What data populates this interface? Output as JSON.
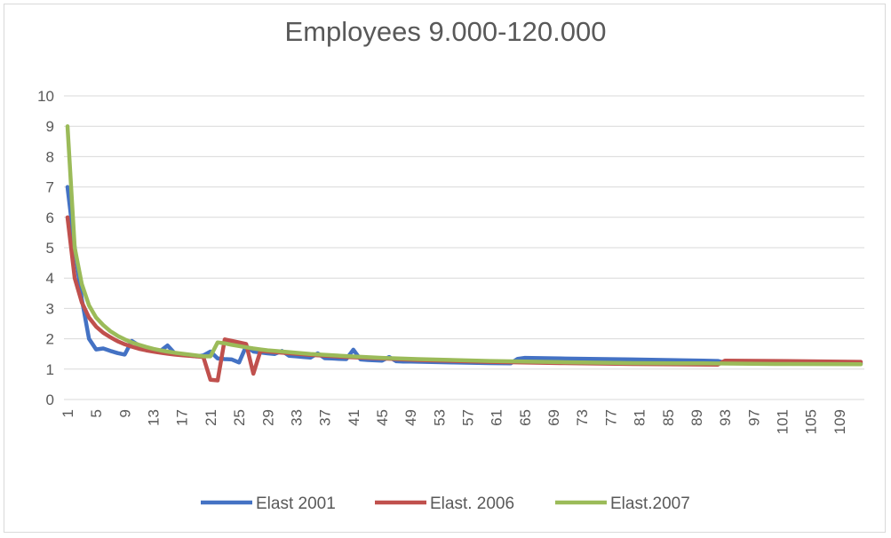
{
  "chart_data": {
    "type": "line",
    "title": "Employees 9.000-120.000",
    "xlabel": "",
    "ylabel": "",
    "x_range": [
      1,
      112
    ],
    "x_tick_labels": [
      "1",
      "5",
      "9",
      "13",
      "17",
      "21",
      "25",
      "29",
      "33",
      "37",
      "41",
      "45",
      "49",
      "53",
      "57",
      "61",
      "65",
      "69",
      "73",
      "77",
      "81",
      "85",
      "89",
      "93",
      "97",
      "101",
      "105",
      "109"
    ],
    "ylim": [
      0,
      10
    ],
    "y_tick_labels": [
      "0",
      "1",
      "2",
      "3",
      "4",
      "5",
      "6",
      "7",
      "8",
      "9",
      "10"
    ],
    "grid": "horizontal",
    "legend_position": "bottom",
    "series": [
      {
        "name": "Elast 2001",
        "color": "#4472c4",
        "points": [
          [
            1,
            7
          ],
          [
            2,
            5
          ],
          [
            3,
            3.3
          ],
          [
            4,
            2
          ],
          [
            5,
            1.65
          ],
          [
            6,
            1.68
          ],
          [
            7,
            1.6
          ],
          [
            8,
            1.53
          ],
          [
            9,
            1.48
          ],
          [
            10,
            1.93
          ],
          [
            11,
            1.78
          ],
          [
            12,
            1.72
          ],
          [
            13,
            1.65
          ],
          [
            14,
            1.6
          ],
          [
            15,
            1.78
          ],
          [
            16,
            1.52
          ],
          [
            17,
            1.48
          ],
          [
            18,
            1.45
          ],
          [
            19,
            1.42
          ],
          [
            20,
            1.45
          ],
          [
            21,
            1.58
          ],
          [
            22,
            1.35
          ],
          [
            23,
            1.33
          ],
          [
            24,
            1.32
          ],
          [
            25,
            1.22
          ],
          [
            26,
            1.76
          ],
          [
            27,
            1.58
          ],
          [
            28,
            1.55
          ],
          [
            29,
            1.52
          ],
          [
            30,
            1.5
          ],
          [
            31,
            1.6
          ],
          [
            32,
            1.44
          ],
          [
            33,
            1.42
          ],
          [
            34,
            1.4
          ],
          [
            35,
            1.38
          ],
          [
            36,
            1.52
          ],
          [
            37,
            1.36
          ],
          [
            38,
            1.35
          ],
          [
            39,
            1.34
          ],
          [
            40,
            1.33
          ],
          [
            41,
            1.64
          ],
          [
            42,
            1.32
          ],
          [
            43,
            1.3
          ],
          [
            44,
            1.29
          ],
          [
            45,
            1.28
          ],
          [
            46,
            1.4
          ],
          [
            47,
            1.26
          ],
          [
            48,
            1.25
          ],
          [
            49,
            1.25
          ],
          [
            55,
            1.22
          ],
          [
            60,
            1.2
          ],
          [
            63,
            1.19
          ],
          [
            64,
            1.34
          ],
          [
            65,
            1.37
          ],
          [
            70,
            1.35
          ],
          [
            80,
            1.32
          ],
          [
            90,
            1.28
          ],
          [
            92,
            1.27
          ],
          [
            93,
            1.21
          ],
          [
            100,
            1.2
          ],
          [
            112,
            1.19
          ]
        ]
      },
      {
        "name": "Elast. 2006",
        "color": "#c0504d",
        "points": [
          [
            1,
            6
          ],
          [
            2,
            4
          ],
          [
            3,
            3.2
          ],
          [
            4,
            2.7
          ],
          [
            5,
            2.4
          ],
          [
            6,
            2.2
          ],
          [
            7,
            2.05
          ],
          [
            8,
            1.92
          ],
          [
            9,
            1.82
          ],
          [
            10,
            1.74
          ],
          [
            11,
            1.67
          ],
          [
            12,
            1.62
          ],
          [
            13,
            1.58
          ],
          [
            14,
            1.54
          ],
          [
            15,
            1.51
          ],
          [
            16,
            1.48
          ],
          [
            17,
            1.46
          ],
          [
            18,
            1.44
          ],
          [
            19,
            1.42
          ],
          [
            20,
            1.4
          ],
          [
            21,
            0.65
          ],
          [
            22,
            0.63
          ],
          [
            23,
            1.98
          ],
          [
            24,
            1.93
          ],
          [
            25,
            1.88
          ],
          [
            26,
            1.83
          ],
          [
            27,
            0.85
          ],
          [
            28,
            1.6
          ],
          [
            29,
            1.58
          ],
          [
            30,
            1.56
          ],
          [
            35,
            1.47
          ],
          [
            40,
            1.4
          ],
          [
            45,
            1.35
          ],
          [
            50,
            1.3
          ],
          [
            60,
            1.24
          ],
          [
            70,
            1.2
          ],
          [
            80,
            1.17
          ],
          [
            92,
            1.15
          ],
          [
            93,
            1.28
          ],
          [
            100,
            1.27
          ],
          [
            112,
            1.24
          ]
        ]
      },
      {
        "name": "Elast.2007",
        "color": "#9bbb59",
        "points": [
          [
            1,
            9
          ],
          [
            2,
            5
          ],
          [
            3,
            3.8
          ],
          [
            4,
            3.1
          ],
          [
            5,
            2.7
          ],
          [
            6,
            2.45
          ],
          [
            7,
            2.25
          ],
          [
            8,
            2.1
          ],
          [
            9,
            1.98
          ],
          [
            10,
            1.88
          ],
          [
            11,
            1.8
          ],
          [
            12,
            1.73
          ],
          [
            13,
            1.67
          ],
          [
            14,
            1.62
          ],
          [
            15,
            1.58
          ],
          [
            16,
            1.54
          ],
          [
            17,
            1.51
          ],
          [
            18,
            1.48
          ],
          [
            19,
            1.45
          ],
          [
            20,
            1.42
          ],
          [
            21,
            1.42
          ],
          [
            22,
            1.88
          ],
          [
            23,
            1.85
          ],
          [
            24,
            1.8
          ],
          [
            25,
            1.76
          ],
          [
            26,
            1.72
          ],
          [
            27,
            1.68
          ],
          [
            28,
            1.65
          ],
          [
            29,
            1.62
          ],
          [
            30,
            1.6
          ],
          [
            35,
            1.5
          ],
          [
            40,
            1.43
          ],
          [
            45,
            1.37
          ],
          [
            50,
            1.33
          ],
          [
            60,
            1.27
          ],
          [
            70,
            1.23
          ],
          [
            80,
            1.2
          ],
          [
            90,
            1.19
          ],
          [
            100,
            1.17
          ],
          [
            112,
            1.16
          ]
        ]
      }
    ]
  }
}
